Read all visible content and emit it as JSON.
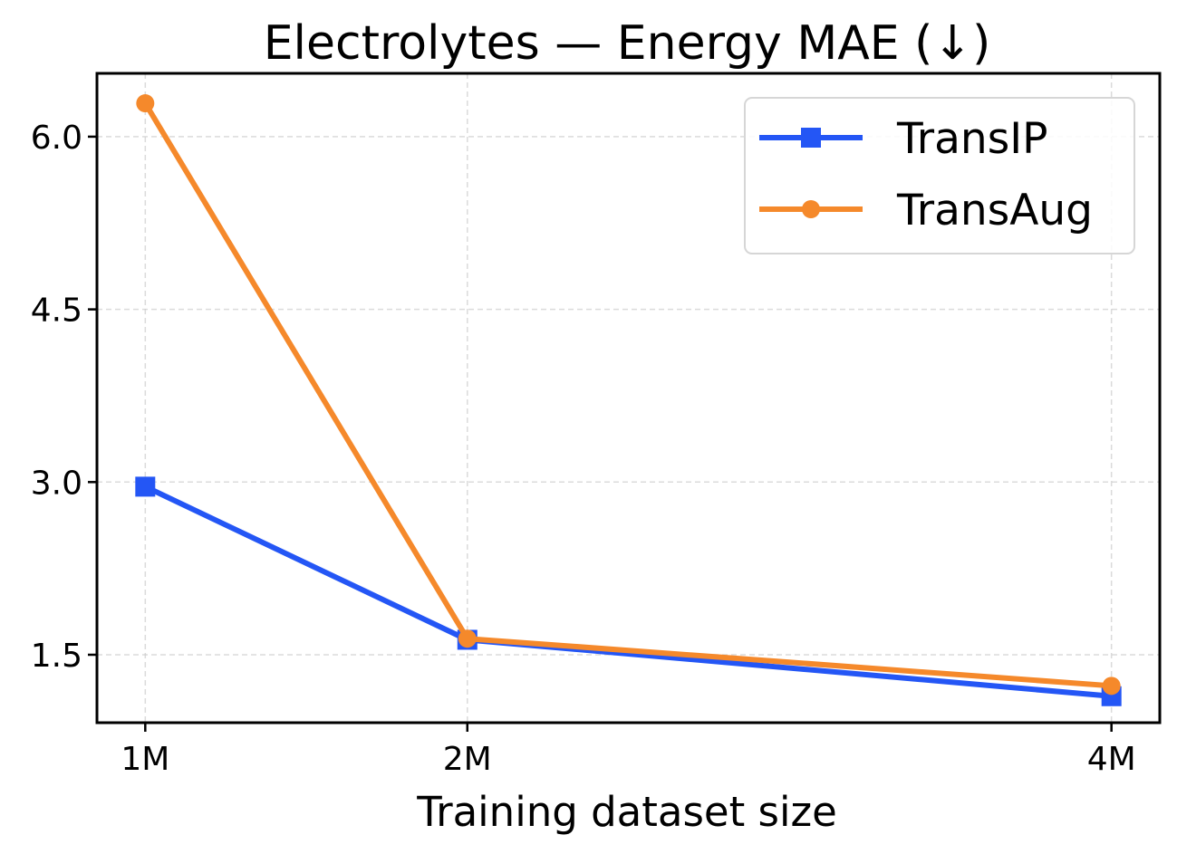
{
  "chart_data": {
    "type": "line",
    "title": "Electrolytes — Energy MAE (↓)",
    "xlabel": "Training dataset size",
    "ylabel": "",
    "x": [
      1,
      2,
      4
    ],
    "x_tick_labels": [
      "1M",
      "2M",
      "4M"
    ],
    "xlim": [
      0.85,
      4.15
    ],
    "ylim": [
      0.91,
      6.55
    ],
    "y_ticks": [
      1.5,
      3.0,
      4.5,
      6.0
    ],
    "y_tick_labels": [
      "1.5",
      "3.0",
      "4.5",
      "6.0"
    ],
    "grid": true,
    "legend_position": "top-right",
    "series": [
      {
        "name": "TransIP",
        "values": [
          2.96,
          1.63,
          1.14
        ],
        "color": "#2456f5",
        "marker": "square"
      },
      {
        "name": "TransAug",
        "values": [
          6.29,
          1.64,
          1.23
        ],
        "color": "#f5892b",
        "marker": "circle"
      }
    ]
  }
}
